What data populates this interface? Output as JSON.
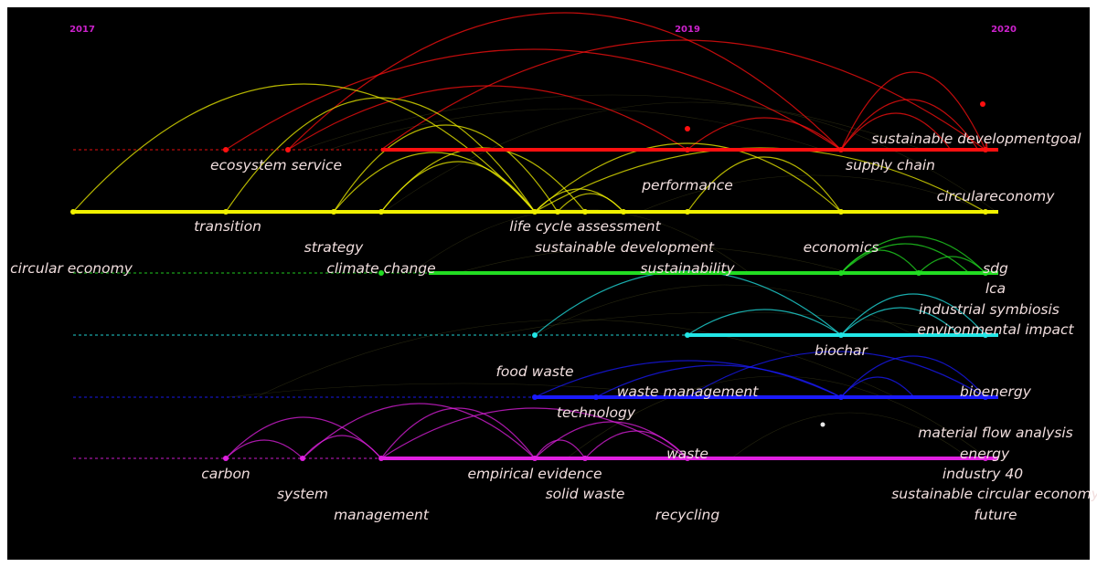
{
  "colors": {
    "background": "#000000",
    "year_label": "#cc22cc",
    "keyword_text": "#f1dede",
    "clusters": [
      "#ff1010",
      "#f2f200",
      "#22dd22",
      "#22e6e6",
      "#1a1aff",
      "#e020e0"
    ]
  },
  "chart_data": {
    "type": "timeline",
    "title": "",
    "xlabel": "",
    "ylabel": "",
    "year_ticks": [
      "2017",
      "2019",
      "2020"
    ],
    "clusters": [
      {
        "color_index": 0,
        "keywords": [
          {
            "label": "ecosystem service",
            "year": 2017.6
          },
          {
            "label": "supply chain",
            "year": 2019.4
          },
          {
            "label": "sustainable developmentgoal",
            "year": 2019.8
          }
        ]
      },
      {
        "color_index": 1,
        "keywords": [
          {
            "label": "transition",
            "year": 2017.5
          },
          {
            "label": "strategy",
            "year": 2017.8
          },
          {
            "label": "life cycle assessment",
            "year": 2018.6
          },
          {
            "label": "sustainable development",
            "year": 2018.8
          },
          {
            "label": "performance",
            "year": 2019.0
          },
          {
            "label": "circulareconomy",
            "year": 2020.0
          }
        ]
      },
      {
        "color_index": 2,
        "keywords": [
          {
            "label": "circular economy",
            "year": 2017.0
          },
          {
            "label": "climate change",
            "year": 2017.9
          },
          {
            "label": "sustainability",
            "year": 2019.0
          },
          {
            "label": "economics",
            "year": 2019.4
          },
          {
            "label": "sdg",
            "year": 2020.0
          },
          {
            "label": "lca",
            "year": 2020.0
          },
          {
            "label": "industrial symbiosis",
            "year": 2020.0
          }
        ]
      },
      {
        "color_index": 3,
        "keywords": [
          {
            "label": "biochar",
            "year": 2019.4
          },
          {
            "label": "environmental impact",
            "year": 2020.0
          }
        ]
      },
      {
        "color_index": 4,
        "keywords": [
          {
            "label": "food waste",
            "year": 2018.6
          },
          {
            "label": "technology",
            "year": 2018.8
          },
          {
            "label": "waste management",
            "year": 2018.9
          },
          {
            "label": "bioenergy",
            "year": 2020.0
          },
          {
            "label": "material flow analysis",
            "year": 2020.0
          }
        ]
      },
      {
        "color_index": 5,
        "keywords": [
          {
            "label": "carbon",
            "year": 2017.5
          },
          {
            "label": "system",
            "year": 2017.7
          },
          {
            "label": "management",
            "year": 2017.9
          },
          {
            "label": "empirical evidence",
            "year": 2018.6
          },
          {
            "label": "solid waste",
            "year": 2018.8
          },
          {
            "label": "waste",
            "year": 2019.0
          },
          {
            "label": "recycling",
            "year": 2019.0
          },
          {
            "label": "energy",
            "year": 2020.0
          },
          {
            "label": "industry 40",
            "year": 2020.0
          },
          {
            "label": "sustainable circular economy",
            "year": 2020.0
          },
          {
            "label": "future",
            "year": 2020.0
          }
        ]
      }
    ]
  }
}
